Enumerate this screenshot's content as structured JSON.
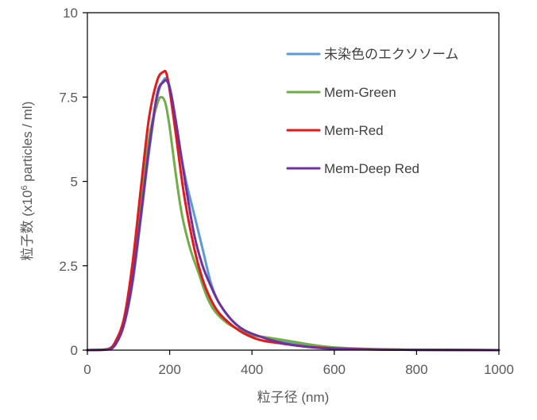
{
  "chart_data": {
    "type": "line",
    "title": "",
    "xlabel": "粒子径 (nm)",
    "ylabel_prefix": "粒子数 (x10",
    "ylabel_sup": "6",
    "ylabel_suffix": " particles / ml)",
    "xlim": [
      0,
      1000
    ],
    "ylim": [
      0,
      10
    ],
    "xticks": [
      0,
      200,
      400,
      600,
      800,
      1000
    ],
    "yticks": [
      0,
      2.5,
      5,
      7.5,
      10
    ],
    "xtick_labels": [
      "0",
      "200",
      "400",
      "600",
      "800",
      "1000"
    ],
    "ytick_labels": [
      "0",
      "2.5",
      "5",
      "7.5",
      "10"
    ],
    "grid": false,
    "legend_position": "top-right",
    "series": [
      {
        "name": "未染色のエクソソーム",
        "color": "#5b9bd5",
        "x": [
          0,
          50,
          70,
          90,
          110,
          130,
          150,
          170,
          185,
          195,
          205,
          220,
          240,
          260,
          280,
          300,
          320,
          350,
          380,
          420,
          460,
          500,
          550,
          600,
          700,
          800,
          1000
        ],
        "y": [
          0,
          0.02,
          0.2,
          0.8,
          2.0,
          3.9,
          5.9,
          7.5,
          8.0,
          8.0,
          7.5,
          6.3,
          5.0,
          4.0,
          3.0,
          2.0,
          1.4,
          0.9,
          0.6,
          0.4,
          0.3,
          0.2,
          0.1,
          0.05,
          0.02,
          0.01,
          0
        ]
      },
      {
        "name": "Mem-Green",
        "color": "#70ad47",
        "x": [
          0,
          50,
          70,
          90,
          110,
          130,
          150,
          170,
          180,
          190,
          200,
          215,
          230,
          250,
          270,
          290,
          310,
          340,
          370,
          400,
          450,
          500,
          550,
          600,
          700,
          800,
          1000
        ],
        "y": [
          0,
          0.03,
          0.25,
          0.9,
          2.3,
          4.3,
          6.3,
          7.3,
          7.5,
          7.3,
          6.6,
          5.2,
          4.0,
          3.0,
          2.3,
          1.6,
          1.15,
          0.8,
          0.6,
          0.45,
          0.35,
          0.25,
          0.15,
          0.08,
          0.03,
          0.01,
          0
        ]
      },
      {
        "name": "Mem-Red",
        "color": "#e31a1c",
        "x": [
          0,
          50,
          70,
          90,
          110,
          130,
          150,
          170,
          185,
          192,
          200,
          215,
          235,
          260,
          280,
          300,
          320,
          350,
          380,
          420,
          470,
          520,
          570,
          620,
          700,
          800,
          1000
        ],
        "y": [
          0,
          0.03,
          0.3,
          1.0,
          2.6,
          4.8,
          6.9,
          8.0,
          8.25,
          8.2,
          7.7,
          6.4,
          4.6,
          3.0,
          2.1,
          1.5,
          1.1,
          0.75,
          0.5,
          0.3,
          0.2,
          0.12,
          0.07,
          0.04,
          0.02,
          0.01,
          0
        ]
      },
      {
        "name": "Mem-Deep Red",
        "color": "#7030a0",
        "x": [
          0,
          50,
          70,
          90,
          110,
          130,
          150,
          170,
          185,
          195,
          205,
          220,
          240,
          260,
          280,
          300,
          320,
          350,
          380,
          420,
          460,
          500,
          550,
          600,
          700,
          800,
          1000
        ],
        "y": [
          0,
          0.02,
          0.2,
          0.8,
          2.1,
          4.0,
          6.0,
          7.6,
          7.95,
          7.95,
          7.5,
          6.4,
          4.8,
          3.4,
          2.5,
          1.9,
          1.4,
          0.9,
          0.6,
          0.4,
          0.25,
          0.15,
          0.08,
          0.04,
          0.02,
          0.01,
          0
        ]
      }
    ]
  }
}
